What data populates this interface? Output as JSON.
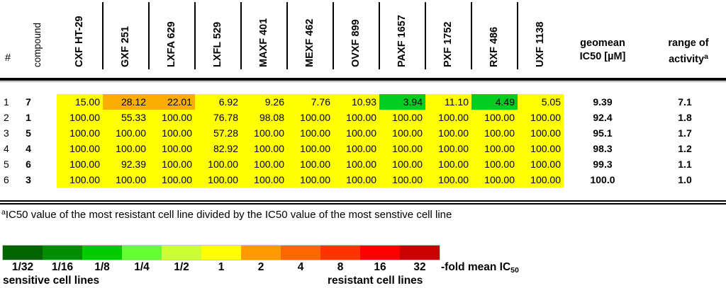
{
  "header": {
    "rank_label": "#",
    "compound_label": "compound",
    "cell_lines": [
      "CXF HT-29",
      "GXF 251",
      "LXFA 629",
      "LXFL 529",
      "MAXF 401",
      "MEXF 462",
      "OVXF 899",
      "PAXF 1657",
      "PXF 1752",
      "RXF 486",
      "UXF 1138"
    ],
    "geomean_line1": "geomean",
    "geomean_line2": "IC50 [µM]",
    "range_line1": "range of",
    "range_line2": "activity",
    "range_sup": "a"
  },
  "colors": {
    "yellow": "#FFFF00",
    "orange": "#FBAE00",
    "green": "#00CC22"
  },
  "rows": [
    {
      "rank": "1",
      "compound": "7",
      "values": [
        "15.00",
        "28.12",
        "22.01",
        "6.92",
        "9.26",
        "7.76",
        "10.93",
        "3.94",
        "11.10",
        "4.49",
        "5.05"
      ],
      "cell_colors": [
        "yellow",
        "orange",
        "orange",
        "yellow",
        "yellow",
        "yellow",
        "yellow",
        "green",
        "yellow",
        "green",
        "yellow"
      ],
      "geomean": "9.39",
      "range": "7.1"
    },
    {
      "rank": "2",
      "compound": "1",
      "values": [
        "100.00",
        "55.33",
        "100.00",
        "76.78",
        "98.08",
        "100.00",
        "100.00",
        "100.00",
        "100.00",
        "100.00",
        "100.00"
      ],
      "cell_colors": [
        "yellow",
        "yellow",
        "yellow",
        "yellow",
        "yellow",
        "yellow",
        "yellow",
        "yellow",
        "yellow",
        "yellow",
        "yellow"
      ],
      "geomean": "92.4",
      "range": "1.8"
    },
    {
      "rank": "3",
      "compound": "5",
      "values": [
        "100.00",
        "100.00",
        "100.00",
        "57.28",
        "100.00",
        "100.00",
        "100.00",
        "100.00",
        "100.00",
        "100.00",
        "100.00"
      ],
      "cell_colors": [
        "yellow",
        "yellow",
        "yellow",
        "yellow",
        "yellow",
        "yellow",
        "yellow",
        "yellow",
        "yellow",
        "yellow",
        "yellow"
      ],
      "geomean": "95.1",
      "range": "1.7"
    },
    {
      "rank": "4",
      "compound": "4",
      "values": [
        "100.00",
        "100.00",
        "100.00",
        "82.92",
        "100.00",
        "100.00",
        "100.00",
        "100.00",
        "100.00",
        "100.00",
        "100.00"
      ],
      "cell_colors": [
        "yellow",
        "yellow",
        "yellow",
        "yellow",
        "yellow",
        "yellow",
        "yellow",
        "yellow",
        "yellow",
        "yellow",
        "yellow"
      ],
      "geomean": "98.3",
      "range": "1.2"
    },
    {
      "rank": "5",
      "compound": "6",
      "values": [
        "100.00",
        "92.39",
        "100.00",
        "100.00",
        "100.00",
        "100.00",
        "100.00",
        "100.00",
        "100.00",
        "100.00",
        "100.00"
      ],
      "cell_colors": [
        "yellow",
        "yellow",
        "yellow",
        "yellow",
        "yellow",
        "yellow",
        "yellow",
        "yellow",
        "yellow",
        "yellow",
        "yellow"
      ],
      "geomean": "99.3",
      "range": "1.1"
    },
    {
      "rank": "6",
      "compound": "3",
      "values": [
        "100.00",
        "100.00",
        "100.00",
        "100.00",
        "100.00",
        "100.00",
        "100.00",
        "100.00",
        "100.00",
        "100.00",
        "100.00"
      ],
      "cell_colors": [
        "yellow",
        "yellow",
        "yellow",
        "yellow",
        "yellow",
        "yellow",
        "yellow",
        "yellow",
        "yellow",
        "yellow",
        "yellow"
      ],
      "geomean": "100.0",
      "range": "1.0"
    }
  ],
  "footnote": {
    "marker": "a",
    "text": "IC50 value of the most resistant cell line divided by the IC50 value of the most senstive cell line"
  },
  "legend": {
    "segments": [
      {
        "label": "1/32",
        "color": "#006400"
      },
      {
        "label": "1/16",
        "color": "#008E00"
      },
      {
        "label": "1/8",
        "color": "#00CC00"
      },
      {
        "label": "1/4",
        "color": "#66FF33"
      },
      {
        "label": "1/2",
        "color": "#CCFF33"
      },
      {
        "label": "1",
        "color": "#FFFF00"
      },
      {
        "label": "2",
        "color": "#FF9900"
      },
      {
        "label": "4",
        "color": "#FF6600"
      },
      {
        "label": "8",
        "color": "#FF3300"
      },
      {
        "label": "16",
        "color": "#FF0000"
      },
      {
        "label": "32",
        "color": "#CC0000"
      }
    ],
    "suffix_text": "-fold mean IC",
    "suffix_sub": "50",
    "left_caption": "sensitive cell lines",
    "right_caption": "resistant cell lines"
  }
}
